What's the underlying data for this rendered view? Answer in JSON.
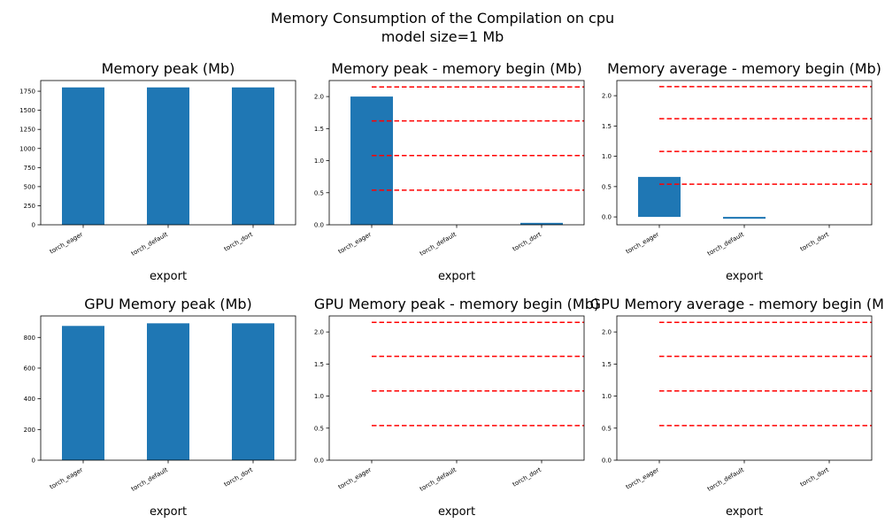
{
  "figure": {
    "title": "Memory Consumption of the Compilation on cpu",
    "subtitle": "model size=1 Mb"
  },
  "colors": {
    "bar": "#1f77b4",
    "hline": "#ff0000",
    "axis": "#000000"
  },
  "chart_data": [
    {
      "type": "bar",
      "title": "Memory peak (Mb)",
      "xlabel": "export",
      "categories": [
        "torch_eager",
        "torch_default",
        "torch_dort"
      ],
      "values": [
        1800,
        1800,
        1800
      ],
      "ylim": [
        0,
        1890
      ],
      "yticks": [
        "0",
        "250",
        "500",
        "750",
        "1000",
        "1250",
        "1500",
        "1750"
      ],
      "hlines": []
    },
    {
      "type": "bar",
      "title": "Memory peak - memory begin (Mb)",
      "xlabel": "export",
      "categories": [
        "torch_eager",
        "torch_default",
        "torch_dort"
      ],
      "values": [
        2.0,
        0.0,
        0.03
      ],
      "ylim": [
        0,
        2.25
      ],
      "yticks": [
        "0.0",
        "0.5",
        "1.0",
        "1.5",
        "2.0"
      ],
      "hlines": [
        0.54,
        1.08,
        1.62,
        2.15
      ]
    },
    {
      "type": "bar",
      "title": "Memory average - memory begin (Mb)",
      "xlabel": "export",
      "categories": [
        "torch_eager",
        "torch_default",
        "torch_dort"
      ],
      "values": [
        0.66,
        -0.03,
        0.0
      ],
      "ylim": [
        -0.13,
        2.25
      ],
      "yticks": [
        "0.0",
        "0.5",
        "1.0",
        "1.5",
        "2.0"
      ],
      "hlines": [
        0.54,
        1.08,
        1.62,
        2.15
      ]
    },
    {
      "type": "bar",
      "title": "GPU Memory peak (Mb)",
      "xlabel": "export",
      "categories": [
        "torch_eager",
        "torch_default",
        "torch_dort"
      ],
      "values": [
        875,
        892,
        892
      ],
      "ylim": [
        0,
        940
      ],
      "yticks": [
        "0",
        "200",
        "400",
        "600",
        "800"
      ],
      "hlines": []
    },
    {
      "type": "bar",
      "title": "GPU Memory peak - memory begin (Mb)",
      "xlabel": "export",
      "categories": [
        "torch_eager",
        "torch_default",
        "torch_dort"
      ],
      "values": [
        0,
        0,
        0
      ],
      "ylim": [
        0,
        2.25
      ],
      "yticks": [
        "0.0",
        "0.5",
        "1.0",
        "1.5",
        "2.0"
      ],
      "hlines": [
        0.54,
        1.08,
        1.62,
        2.15
      ]
    },
    {
      "type": "bar",
      "title": "GPU Memory average - memory begin (Mb)",
      "xlabel": "export",
      "categories": [
        "torch_eager",
        "torch_default",
        "torch_dort"
      ],
      "values": [
        0,
        0,
        0
      ],
      "ylim": [
        0,
        2.25
      ],
      "yticks": [
        "0.0",
        "0.5",
        "1.0",
        "1.5",
        "2.0"
      ],
      "hlines": [
        0.54,
        1.08,
        1.62,
        2.15
      ]
    }
  ]
}
